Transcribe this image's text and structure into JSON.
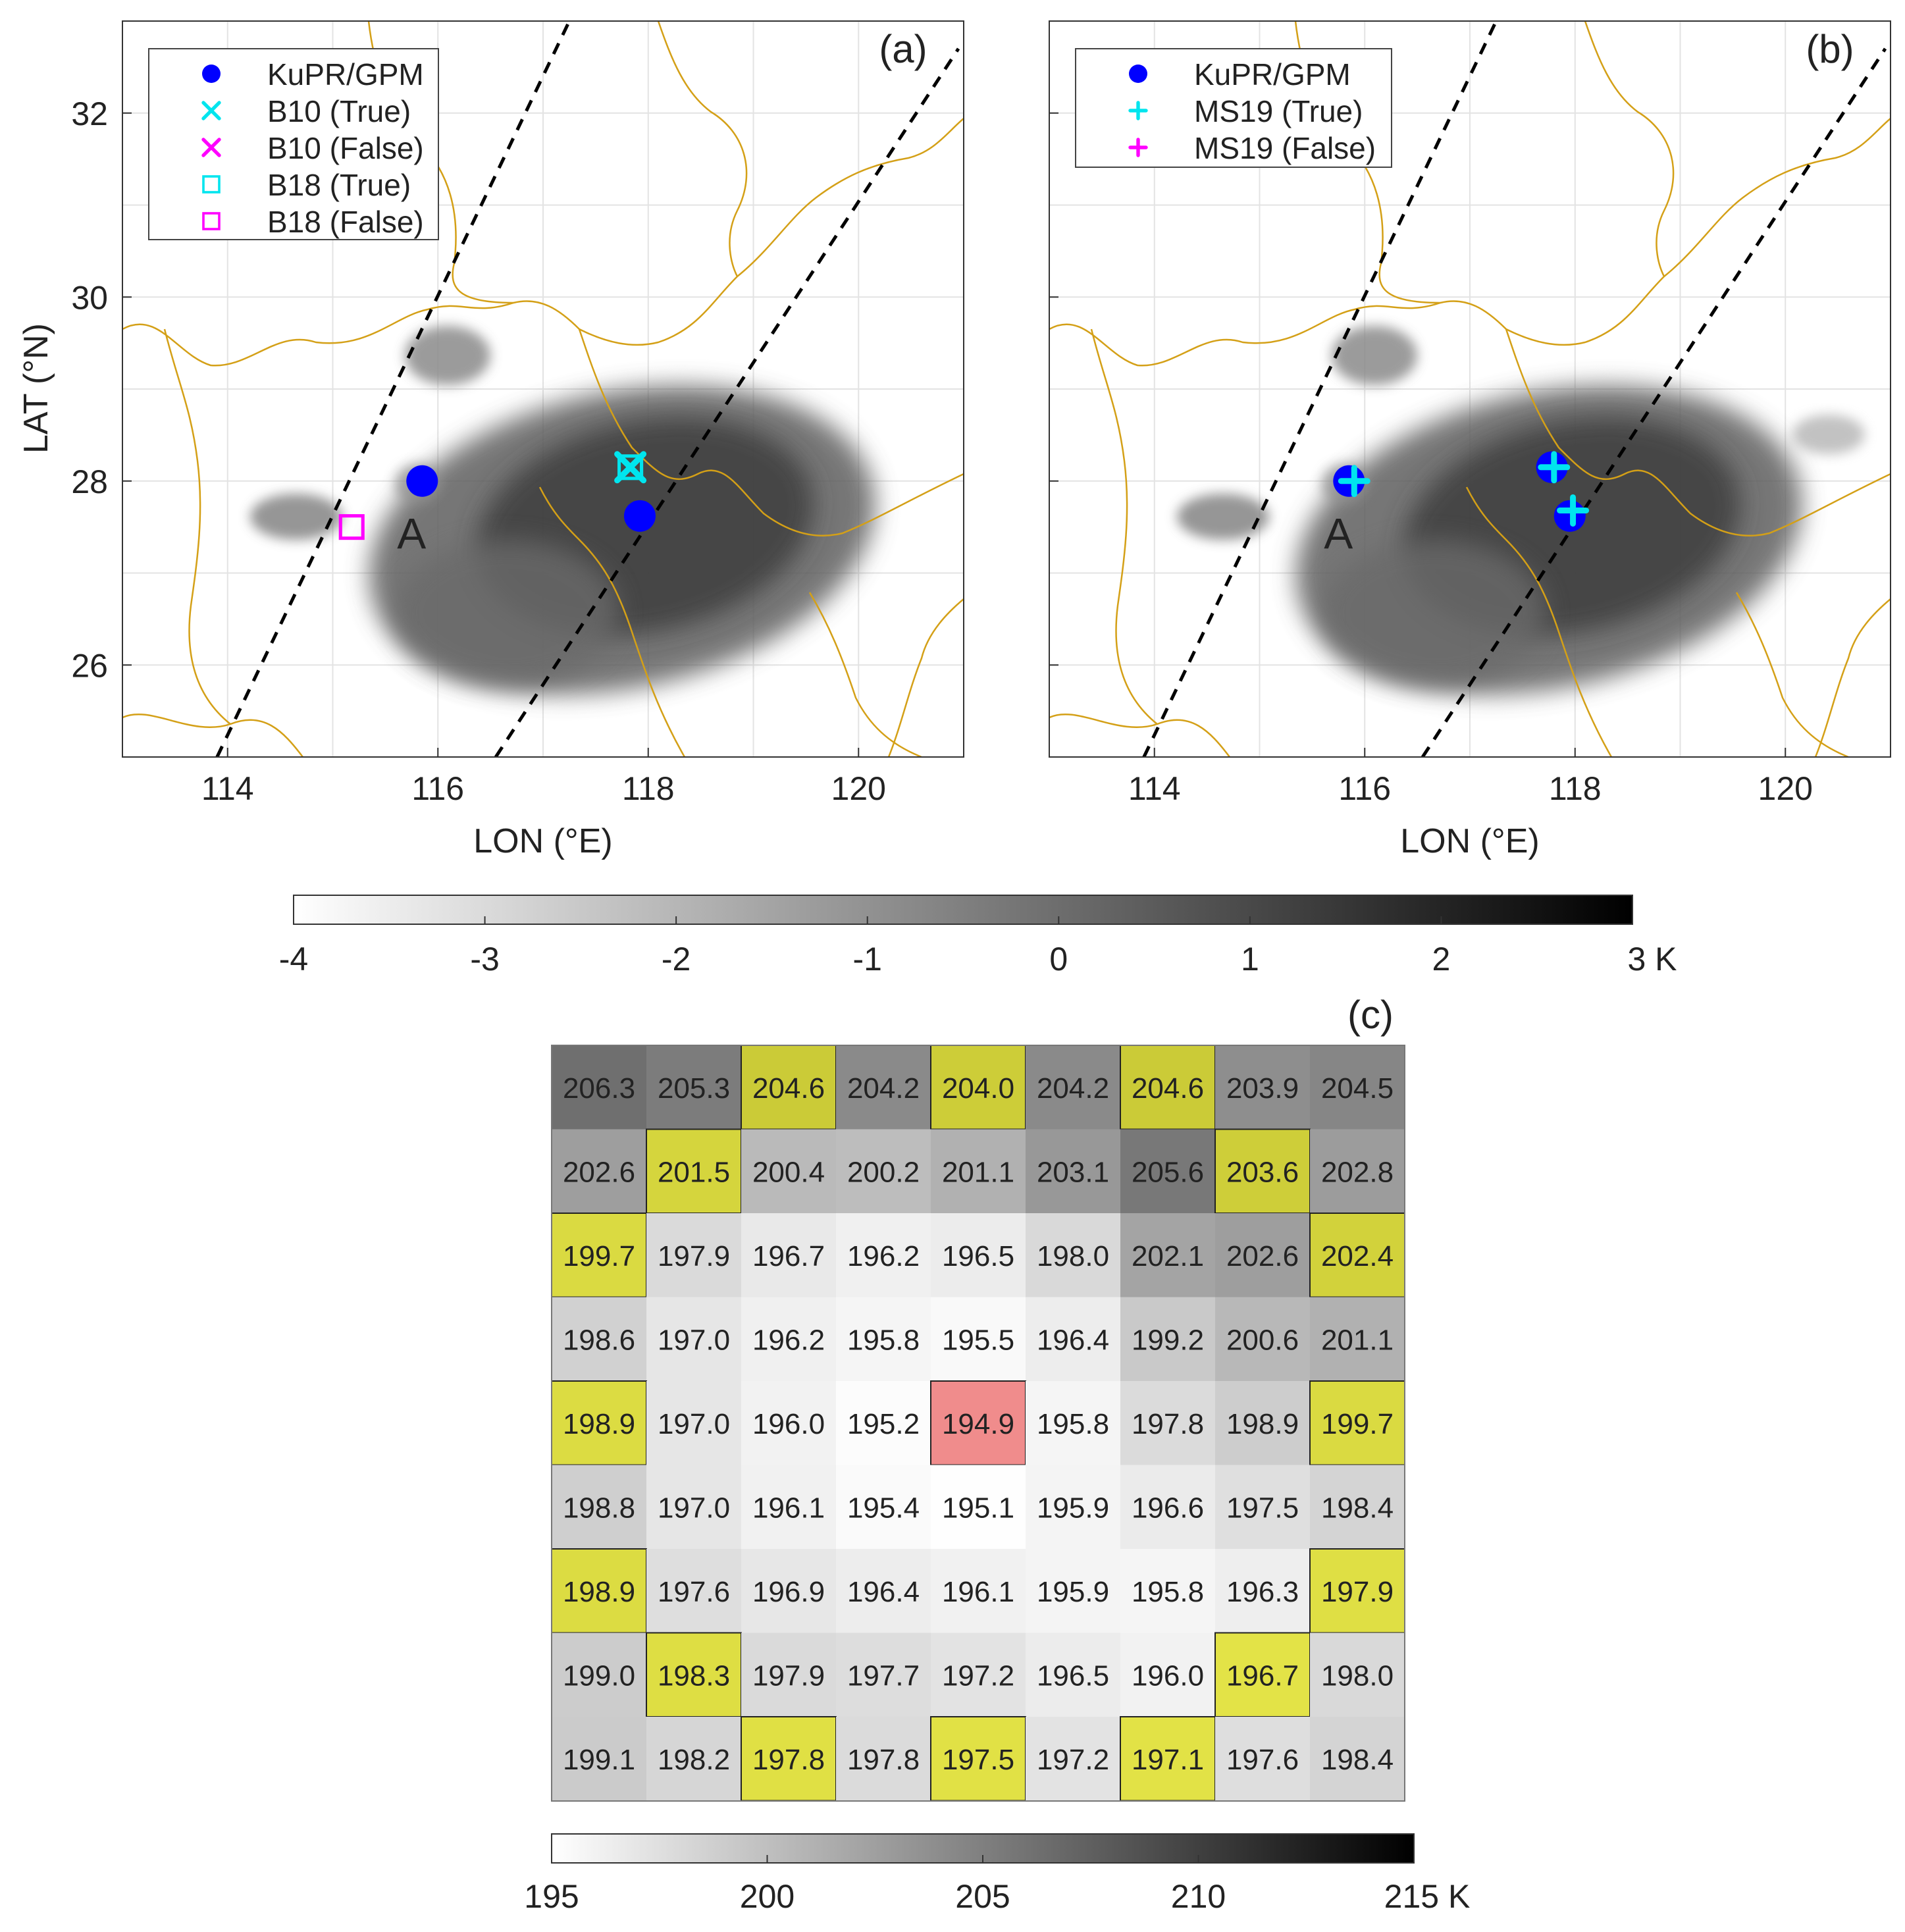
{
  "chart_data": [
    {
      "type": "map",
      "panel_label": "(a)",
      "xlabel": "LON (°E)",
      "ylabel": "LAT (°N)",
      "xlim": [
        113,
        121
      ],
      "ylim": [
        25,
        33
      ],
      "xticks": [
        114,
        116,
        118,
        120
      ],
      "yticks": [
        26,
        28,
        30,
        32
      ],
      "xtick_labels": [
        "114",
        "116",
        "118",
        "120"
      ],
      "ytick_labels": [
        "26",
        "28",
        "30",
        "32"
      ],
      "grid": true,
      "legend": {
        "position": "top-left",
        "entries": [
          {
            "label": "KuPR/GPM",
            "marker": "dot",
            "color": "#0000ff"
          },
          {
            "label": "B10 (True)",
            "marker": "x",
            "color": "#00e5ee"
          },
          {
            "label": "B10 (False)",
            "marker": "x",
            "color": "#ff00ff"
          },
          {
            "label": "B18 (True)",
            "marker": "square",
            "color": "#00e5ee"
          },
          {
            "label": "B18 (False)",
            "marker": "square",
            "color": "#ff00ff"
          }
        ]
      },
      "annotation": {
        "text": "A",
        "lon": 115.75,
        "lat": 27.55
      },
      "swath_edges": [
        {
          "lon1": 113.9,
          "lat1": 25.0,
          "lon2": 117.25,
          "lat2": 33.0
        },
        {
          "lon1": 116.55,
          "lat1": 25.0,
          "lon2": 120.95,
          "lat2": 32.7
        }
      ],
      "points": [
        {
          "series": "KuPR/GPM",
          "lon": 115.85,
          "lat": 28.0
        },
        {
          "series": "KuPR/GPM",
          "lon": 117.92,
          "lat": 27.62
        },
        {
          "series": "B10 (True)",
          "lon": 117.83,
          "lat": 28.15
        },
        {
          "series": "B18 (True)",
          "lon": 117.83,
          "lat": 28.15
        },
        {
          "series": "B18 (False)",
          "lon": 115.18,
          "lat": 27.5
        }
      ]
    },
    {
      "type": "map",
      "panel_label": "(b)",
      "xlabel": "LON (°E)",
      "xlim": [
        113,
        121
      ],
      "ylim": [
        25,
        33
      ],
      "xticks": [
        114,
        116,
        118,
        120
      ],
      "yticks": [
        26,
        28,
        30,
        32
      ],
      "xtick_labels": [
        "114",
        "116",
        "118",
        "120"
      ],
      "grid": true,
      "legend": {
        "position": "top-left",
        "entries": [
          {
            "label": "KuPR/GPM",
            "marker": "dot",
            "color": "#0000ff"
          },
          {
            "label": "MS19 (True)",
            "marker": "plus",
            "color": "#00e5ee"
          },
          {
            "label": "MS19 (False)",
            "marker": "plus",
            "color": "#ff00ff"
          }
        ]
      },
      "annotation": {
        "text": "A",
        "lon": 115.75,
        "lat": 27.55
      },
      "swath_edges": [
        {
          "lon1": 113.9,
          "lat1": 25.0,
          "lon2": 117.25,
          "lat2": 33.0
        },
        {
          "lon1": 116.55,
          "lat1": 25.0,
          "lon2": 120.95,
          "lat2": 32.7
        }
      ],
      "points": [
        {
          "series": "KuPR/GPM",
          "lon": 115.85,
          "lat": 28.0
        },
        {
          "series": "KuPR/GPM",
          "lon": 117.78,
          "lat": 28.15
        },
        {
          "series": "KuPR/GPM",
          "lon": 117.95,
          "lat": 27.62
        },
        {
          "series": "MS19 (True)",
          "lon": 115.9,
          "lat": 28.0
        },
        {
          "series": "MS19 (True)",
          "lon": 117.8,
          "lat": 28.15
        },
        {
          "series": "MS19 (True)",
          "lon": 117.98,
          "lat": 27.68
        }
      ]
    },
    {
      "type": "colorbar",
      "range": [
        -4,
        3
      ],
      "ticks": [
        -4,
        -3,
        -2,
        -1,
        0,
        1,
        2,
        3
      ],
      "tick_labels": [
        "-4",
        "-3",
        "-2",
        "-1",
        "0",
        "1",
        "2",
        "3 K"
      ],
      "unit": "K"
    },
    {
      "type": "heatmap",
      "panel_label": "(c)",
      "values": [
        [
          206.3,
          205.3,
          204.6,
          204.2,
          204.0,
          204.2,
          204.6,
          203.9,
          204.5
        ],
        [
          202.6,
          201.5,
          200.4,
          200.2,
          201.1,
          203.1,
          205.6,
          203.6,
          202.8
        ],
        [
          199.7,
          197.9,
          196.7,
          196.2,
          196.5,
          198.0,
          202.1,
          202.6,
          202.4
        ],
        [
          198.6,
          197.0,
          196.2,
          195.8,
          195.5,
          196.4,
          199.2,
          200.6,
          201.1
        ],
        [
          198.9,
          197.0,
          196.0,
          195.2,
          194.9,
          195.8,
          197.8,
          198.9,
          199.7
        ],
        [
          198.8,
          197.0,
          196.1,
          195.4,
          195.1,
          195.9,
          196.6,
          197.5,
          198.4
        ],
        [
          198.9,
          197.6,
          196.9,
          196.4,
          196.1,
          195.9,
          195.8,
          196.3,
          197.9
        ],
        [
          199.0,
          198.3,
          197.9,
          197.7,
          197.2,
          196.5,
          196.0,
          196.7,
          198.0
        ],
        [
          199.1,
          198.2,
          197.8,
          197.8,
          197.5,
          197.2,
          197.1,
          197.6,
          198.4
        ]
      ],
      "highlighted_yellow": [
        [
          0,
          2
        ],
        [
          0,
          4
        ],
        [
          0,
          6
        ],
        [
          1,
          1
        ],
        [
          1,
          7
        ],
        [
          2,
          0
        ],
        [
          2,
          8
        ],
        [
          4,
          0
        ],
        [
          4,
          8
        ],
        [
          6,
          0
        ],
        [
          6,
          8
        ],
        [
          7,
          1
        ],
        [
          7,
          7
        ],
        [
          8,
          2
        ],
        [
          8,
          4
        ],
        [
          8,
          6
        ]
      ],
      "highlighted_red": [
        [
          4,
          4
        ]
      ],
      "colorbar": {
        "range": [
          195,
          215
        ],
        "ticks": [
          195,
          200,
          205,
          210,
          215
        ],
        "tick_labels": [
          "195",
          "200",
          "205",
          "210",
          "215 K"
        ],
        "unit": "K"
      }
    }
  ],
  "colors": {
    "border": "#d4a017",
    "highlight_yellow": "#e8e84a",
    "highlight_red": "#f08c8c",
    "kupr": "#0000ff",
    "true_marker": "#00e5ee",
    "false_marker": "#ff00ff"
  }
}
